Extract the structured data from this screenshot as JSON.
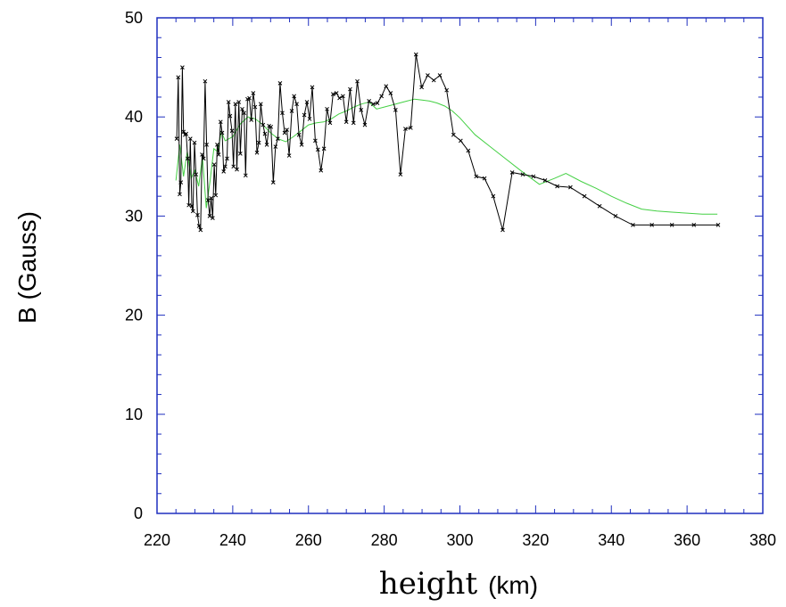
{
  "chart_data": {
    "type": "line",
    "title": "",
    "xlabel_word": "height",
    "xlabel_unit": "(km)",
    "ylabel": "B (Gauss)",
    "xlim": [
      220,
      380
    ],
    "ylim": [
      0,
      50
    ],
    "x_ticks": [
      "220",
      "240",
      "260",
      "280",
      "300",
      "320",
      "340",
      "360",
      "380"
    ],
    "y_ticks": [
      "0",
      "10",
      "20",
      "30",
      "40",
      "50"
    ],
    "colors": {
      "frame": "#1f2fbf",
      "measured": "#000000",
      "smoothed": "#44d044"
    },
    "series": [
      {
        "role": "measured",
        "marker": "x",
        "x": [
          225.2,
          225.6,
          226.0,
          226.3,
          226.7,
          227.0,
          227.4,
          227.7,
          228.1,
          228.4,
          228.8,
          229.2,
          229.5,
          229.9,
          230.3,
          230.7,
          231.1,
          231.5,
          231.9,
          232.3,
          232.7,
          233.1,
          233.5,
          233.9,
          234.3,
          234.7,
          235.1,
          235.5,
          235.9,
          236.3,
          236.8,
          237.2,
          237.6,
          238.0,
          238.5,
          238.9,
          239.3,
          239.8,
          240.2,
          240.7,
          241.1,
          241.6,
          242.0,
          242.5,
          243.0,
          243.4,
          243.9,
          244.4,
          244.9,
          245.4,
          245.9,
          246.4,
          246.9,
          247.4,
          248.0,
          248.5,
          249.0,
          249.6,
          250.1,
          250.7,
          251.3,
          251.9,
          252.5,
          253.1,
          253.7,
          254.3,
          254.9,
          255.6,
          256.2,
          256.9,
          257.5,
          258.2,
          258.9,
          259.6,
          260.3,
          261.0,
          261.8,
          262.5,
          263.3,
          264.1,
          264.9,
          265.7,
          266.5,
          267.4,
          268.2,
          269.1,
          270.0,
          271.0,
          271.9,
          272.9,
          273.9,
          274.9,
          276.0,
          277.1,
          278.2,
          279.3,
          280.5,
          281.7,
          283.0,
          284.3,
          285.6,
          287.0,
          288.4,
          289.9,
          291.5,
          293.1,
          294.7,
          296.5,
          298.3,
          300.2,
          302.2,
          304.3,
          306.5,
          308.8,
          311.3,
          313.8,
          316.6,
          319.4,
          322.5,
          325.7,
          329.2,
          332.9,
          336.9,
          341.1,
          345.7,
          350.7,
          356.0,
          361.8,
          368.2
        ],
        "y": [
          37.8,
          44.0,
          32.2,
          33.4,
          45.0,
          38.5,
          38.2,
          38.3,
          35.8,
          31.1,
          37.8,
          31.0,
          30.5,
          37.4,
          34.2,
          30.1,
          29.0,
          28.6,
          36.2,
          35.8,
          43.6,
          37.2,
          31.6,
          30.0,
          31.8,
          29.8,
          35.2,
          32.1,
          37.2,
          36.2,
          39.5,
          38.4,
          34.5,
          35.0,
          35.8,
          41.5,
          40.1,
          38.6,
          35.0,
          41.3,
          34.7,
          41.5,
          36.3,
          40.8,
          40.4,
          34.1,
          41.8,
          41.9,
          39.7,
          42.4,
          41.0,
          36.4,
          37.4,
          41.3,
          39.2,
          38.3,
          37.2,
          39.1,
          39.0,
          33.4,
          37.0,
          37.8,
          43.4,
          40.4,
          38.4,
          38.7,
          36.1,
          40.6,
          42.1,
          41.3,
          38.2,
          37.2,
          40.2,
          41.5,
          39.8,
          43.0,
          37.6,
          36.7,
          34.6,
          36.8,
          40.8,
          39.4,
          42.3,
          42.4,
          41.9,
          42.1,
          39.5,
          42.8,
          39.4,
          43.6,
          40.7,
          39.2,
          41.6,
          41.3,
          41.4,
          42.1,
          43.1,
          42.4,
          40.7,
          34.2,
          38.8,
          38.9,
          46.3,
          43.0,
          44.2,
          43.7,
          44.2,
          42.7,
          38.2,
          37.6,
          36.6,
          34.0,
          33.8,
          32.0,
          28.6,
          34.4,
          34.2,
          34.0,
          33.6,
          33.0,
          32.9,
          32.0,
          31.0,
          30.0,
          29.1,
          29.1,
          29.1,
          29.1,
          29.1
        ]
      },
      {
        "role": "smoothed",
        "marker": "none",
        "x": [
          225,
          226,
          227,
          228,
          229,
          230,
          231,
          232,
          233,
          234,
          235,
          236,
          237,
          238,
          240,
          242,
          244,
          246,
          248,
          250,
          252,
          254,
          256,
          258,
          260,
          262,
          264,
          266,
          268,
          270,
          272,
          274,
          276,
          278,
          280,
          282,
          284,
          286,
          288,
          290,
          292,
          294,
          296,
          298,
          300,
          304,
          308,
          312,
          316,
          321,
          325,
          328,
          332,
          336,
          340,
          344,
          348,
          352,
          356,
          360,
          364,
          368
        ],
        "y": [
          33.6,
          37.2,
          34.0,
          36.5,
          33.8,
          34.6,
          33.0,
          36.0,
          30.8,
          33.5,
          36.8,
          36.5,
          38.5,
          37.6,
          38.0,
          39.3,
          40.0,
          39.8,
          39.2,
          38.4,
          37.8,
          37.5,
          38.0,
          38.6,
          39.2,
          39.4,
          39.5,
          39.8,
          40.3,
          40.6,
          41.0,
          41.3,
          41.5,
          40.8,
          41.0,
          41.2,
          41.4,
          41.6,
          41.8,
          41.7,
          41.6,
          41.4,
          41.1,
          40.6,
          39.9,
          38.2,
          37.0,
          35.8,
          34.6,
          33.2,
          33.8,
          34.3,
          33.5,
          32.8,
          32.0,
          31.3,
          30.7,
          30.5,
          30.4,
          30.3,
          30.2,
          30.2
        ]
      }
    ]
  }
}
